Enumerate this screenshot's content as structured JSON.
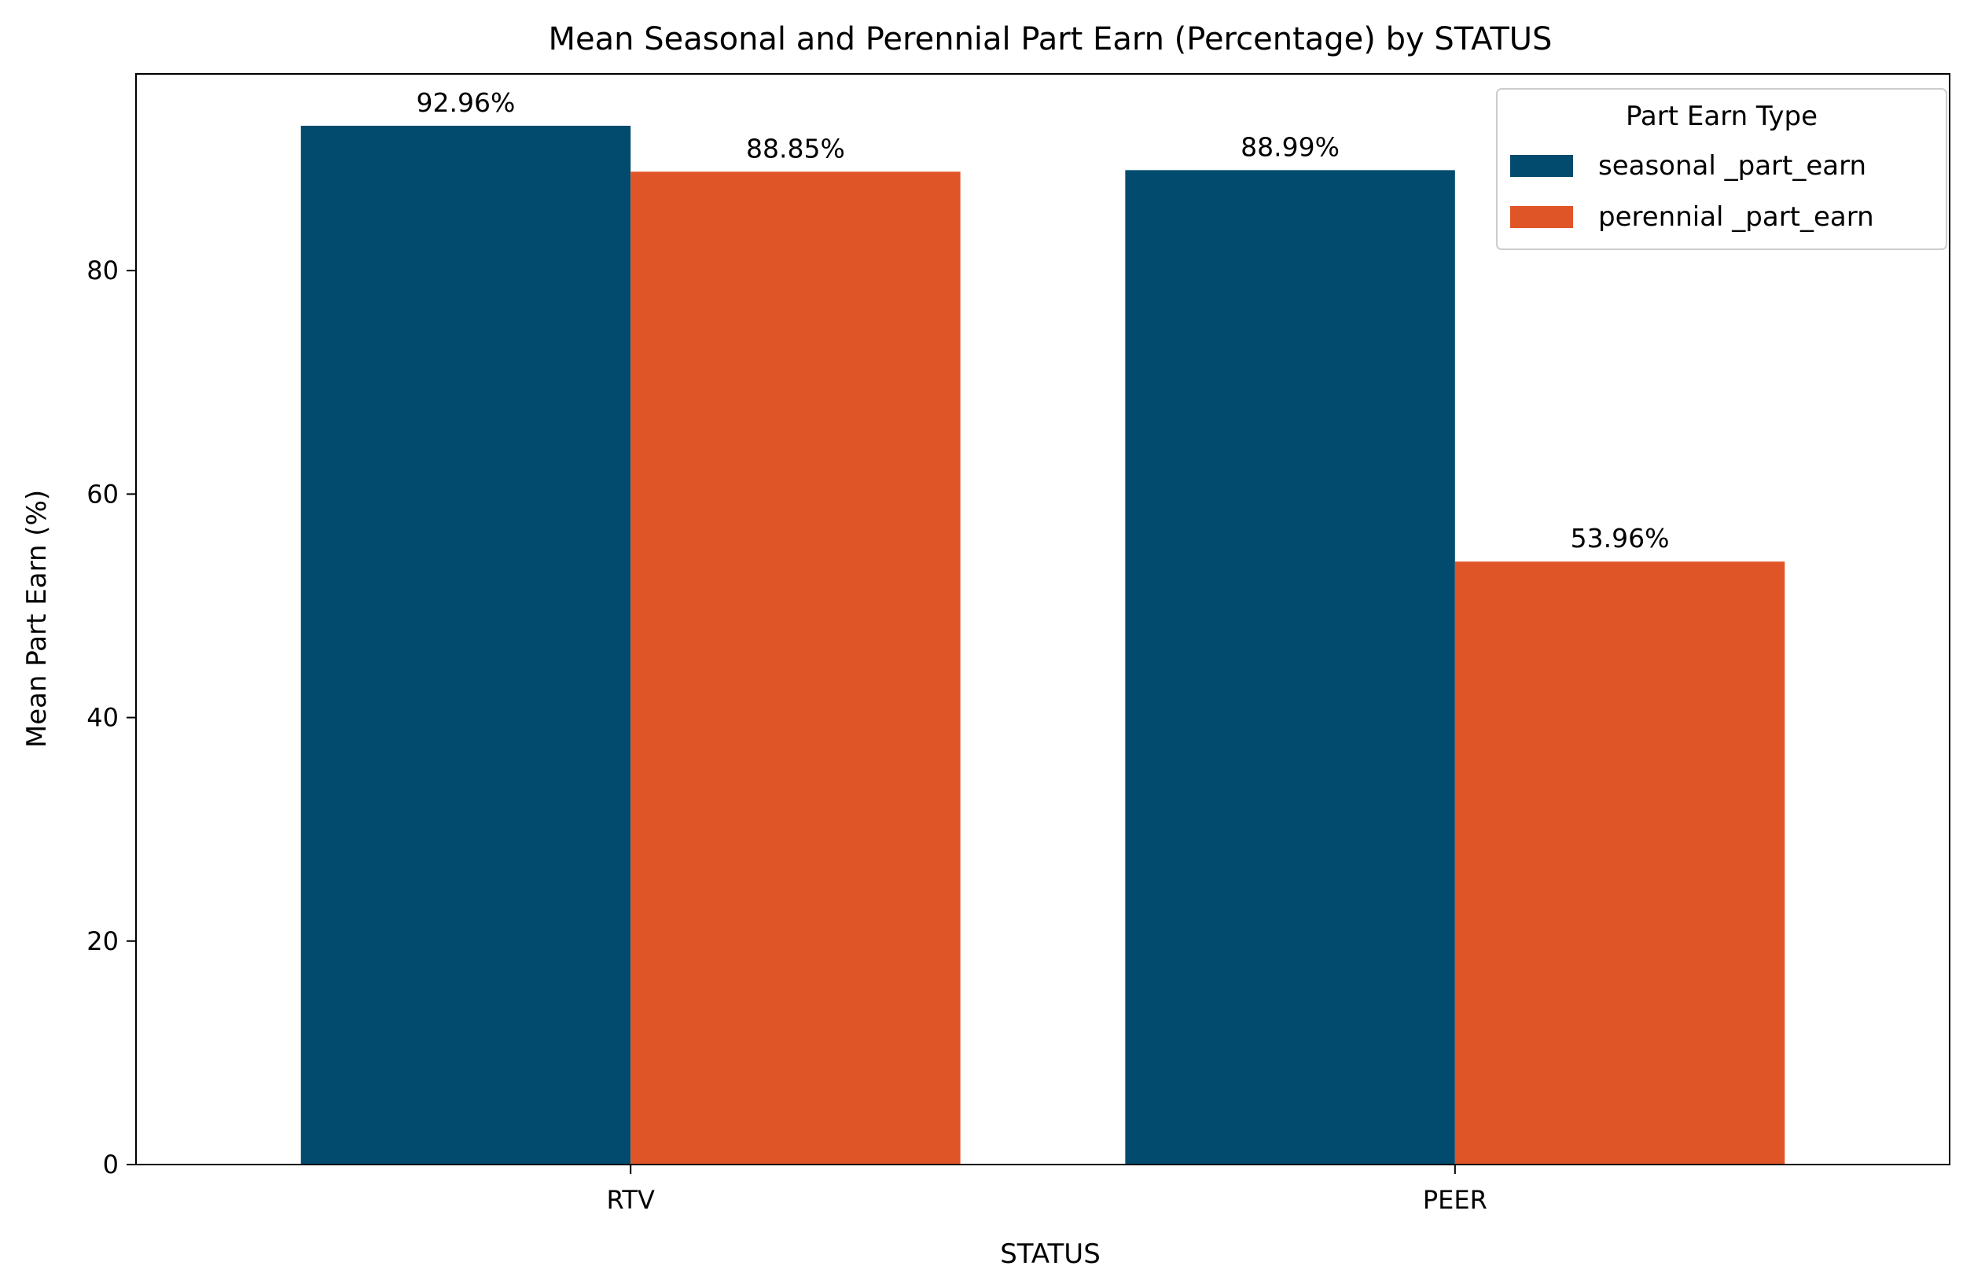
{
  "chart_data": {
    "type": "bar",
    "title": "Mean Seasonal and Perennial Part Earn (Percentage) by STATUS",
    "xlabel": "STATUS",
    "ylabel": "Mean Part Earn (%)",
    "categories": [
      "RTV",
      "PEER"
    ],
    "series": [
      {
        "name": "seasonal _part_earn",
        "color": "#024b6e",
        "values": [
          92.96,
          88.99
        ],
        "labels": [
          "92.96%",
          "88.99%"
        ]
      },
      {
        "name": "perennial _part_earn",
        "color": "#e05527",
        "values": [
          88.85,
          53.96
        ],
        "labels": [
          "88.85%",
          "53.96%"
        ]
      }
    ],
    "ylim": [
      0,
      97.6
    ],
    "yticks": [
      0,
      20,
      40,
      60,
      80
    ],
    "legend": {
      "title": "Part Earn Type",
      "placement": "top-right"
    },
    "grid": false
  }
}
